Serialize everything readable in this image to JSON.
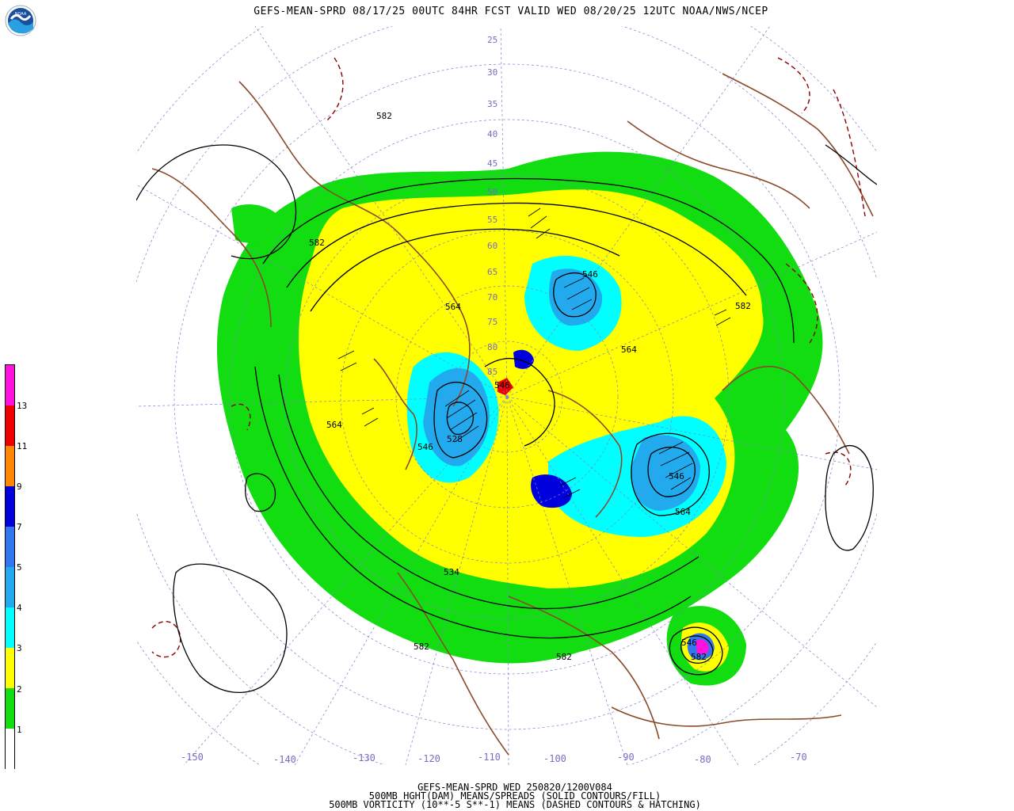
{
  "title": "GEFS-MEAN-SPRD 08/17/25 00UTC 84HR FCST VALID WED 08/20/25 12UTC NOAA/NWS/NCEP",
  "logo_text": "NOAA",
  "legend": {
    "labels": [
      "1",
      "2",
      "3",
      "4",
      "5",
      "7",
      "9",
      "11",
      "13"
    ],
    "colors": [
      "#ffffff",
      "#11dd11",
      "#ffff00",
      "#00ffff",
      "#22aaee",
      "#3377ee",
      "#0000dd",
      "#ff8800",
      "#ee0000",
      "#ff11dd"
    ]
  },
  "lat_labels": [
    "25",
    "30",
    "35",
    "40",
    "45",
    "50",
    "55",
    "60",
    "65",
    "70",
    "75",
    "80",
    "85"
  ],
  "lon_labels": [
    "-150",
    "-140",
    "-130",
    "-120",
    "-110",
    "-100",
    "-90",
    "-80",
    "-70"
  ],
  "contour_labels": [
    "582",
    "582",
    "582",
    "564",
    "564",
    "546",
    "528",
    "546",
    "564",
    "534",
    "582",
    "546",
    "546",
    "564",
    "582",
    "582",
    "546"
  ],
  "footer": {
    "line1": "GEFS-MEAN-SPRD WED 250820/1200V084",
    "line2": "500MB HGHT(DAM) MEANS/SPREADS (SOLID CONTOURS/FILL)",
    "line3": "500MB VORTICITY (10**-5 S**-1) MEANS (DASHED CONTOURS & HATCHING)"
  },
  "colors": {
    "coast": "#8b4a2a",
    "vort": "#8b0000",
    "grid": "#8080d0",
    "contour": "#000000"
  }
}
